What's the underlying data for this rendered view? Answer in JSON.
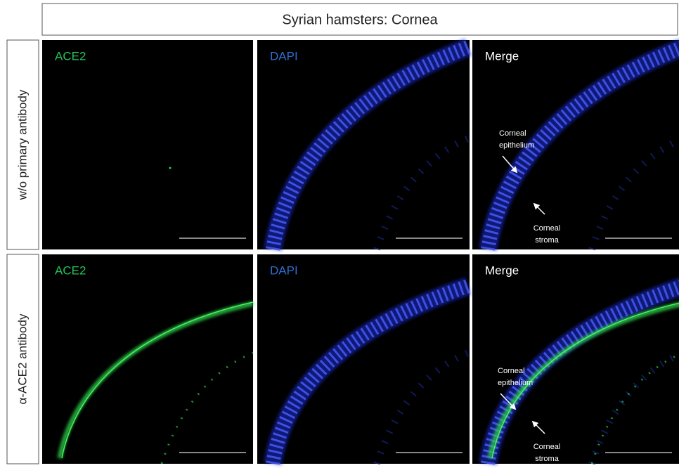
{
  "header": {
    "title": "Syrian hamsters: Cornea"
  },
  "rows": [
    {
      "label": "w/o primary antibody",
      "panels": [
        {
          "label": "ACE2"
        },
        {
          "label": "DAPI"
        },
        {
          "label": "Merge",
          "annotations": [
            {
              "lines": [
                "Corneal",
                "epithelium"
              ]
            },
            {
              "lines": [
                "Corneal",
                "stroma"
              ]
            }
          ]
        }
      ]
    },
    {
      "label": "α-ACE2 antibody",
      "panels": [
        {
          "label": "ACE2"
        },
        {
          "label": "DAPI"
        },
        {
          "label": "Merge",
          "annotations": [
            {
              "lines": [
                "Corneal",
                "epithelium"
              ]
            },
            {
              "lines": [
                "Corneal",
                "stroma"
              ]
            }
          ]
        }
      ]
    }
  ]
}
